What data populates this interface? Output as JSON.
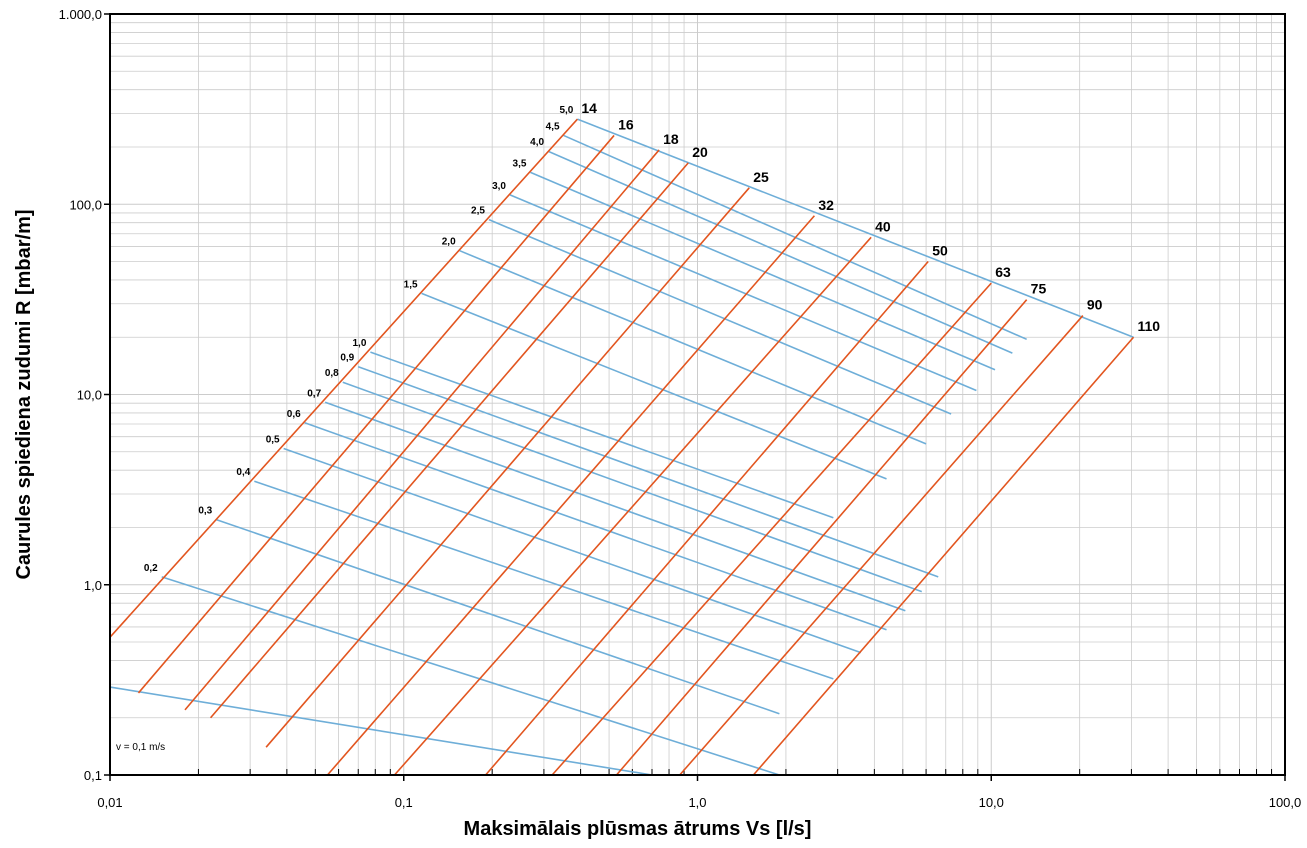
{
  "chart_data": {
    "type": "line",
    "xlabel": "Maksimālais plūsmas ātrums Vs [l/s]",
    "ylabel": "Caurules spiediena zudumi R [mbar/m]",
    "xscale": "log",
    "yscale": "log",
    "xlim": [
      0.01,
      100
    ],
    "ylim": [
      0.1,
      1000
    ],
    "grid": true,
    "x_ticks": [
      0.01,
      0.1,
      1,
      10,
      100
    ],
    "x_tick_labels": [
      "0,01",
      "0,1",
      "1,0",
      "10,0",
      "100,0"
    ],
    "y_ticks": [
      0.1,
      1,
      10,
      100,
      1000
    ],
    "y_tick_labels": [
      "0,1",
      "1,0",
      "10,0",
      "100,0",
      "1.000,0"
    ],
    "annotation": "v = 0,1 m/s",
    "colors": {
      "diameter_line": "#e2551f",
      "velocity_line": "#6eaed8",
      "grid": "#cccccc",
      "frame": "#000000"
    },
    "pipe_series": [
      {
        "name": "14",
        "start": [
          0.01,
          0.53
        ],
        "end": [
          0.39,
          280
        ]
      },
      {
        "name": "16",
        "start": [
          0.0125,
          0.27
        ],
        "end": [
          0.52,
          230
        ]
      },
      {
        "name": "18",
        "start": [
          0.018,
          0.22
        ],
        "end": [
          0.74,
          193
        ]
      },
      {
        "name": "20",
        "start": [
          0.022,
          0.2
        ],
        "end": [
          0.93,
          165
        ]
      },
      {
        "name": "25",
        "start": [
          0.034,
          0.14
        ],
        "end": [
          1.5,
          122
        ]
      },
      {
        "name": "32",
        "start": [
          0.055,
          0.1
        ],
        "end": [
          2.5,
          87
        ]
      },
      {
        "name": "40",
        "start": [
          0.093,
          0.1
        ],
        "end": [
          3.9,
          67
        ]
      },
      {
        "name": "50",
        "start": [
          0.19,
          0.1
        ],
        "end": [
          6.1,
          50
        ]
      },
      {
        "name": "63",
        "start": [
          0.32,
          0.1
        ],
        "end": [
          10,
          38.5
        ]
      },
      {
        "name": "75",
        "start": [
          0.53,
          0.1
        ],
        "end": [
          13.2,
          31.5
        ]
      },
      {
        "name": "90",
        "start": [
          0.87,
          0.1
        ],
        "end": [
          20.5,
          26
        ]
      },
      {
        "name": "110",
        "start": [
          1.55,
          0.1
        ],
        "end": [
          30.5,
          20
        ]
      }
    ],
    "velocity_series": [
      {
        "name": "0,1",
        "start": [
          0.01,
          0.29
        ],
        "end": [
          0.7,
          0.1
        ]
      },
      {
        "name": "0,2",
        "start": [
          0.015,
          1.1
        ],
        "end": [
          1.9,
          0.1
        ]
      },
      {
        "name": "0,3",
        "start": [
          0.023,
          2.2
        ],
        "end": [
          1.9,
          0.21
        ]
      },
      {
        "name": "0,4",
        "start": [
          0.031,
          3.5
        ],
        "end": [
          2.9,
          0.32
        ]
      },
      {
        "name": "0,5",
        "start": [
          0.039,
          5.2
        ],
        "end": [
          3.6,
          0.44
        ]
      },
      {
        "name": "0,6",
        "start": [
          0.046,
          7.1
        ],
        "end": [
          4.4,
          0.58
        ]
      },
      {
        "name": "0,7",
        "start": [
          0.054,
          9.1
        ],
        "end": [
          5.1,
          0.73
        ]
      },
      {
        "name": "0,8",
        "start": [
          0.062,
          11.6
        ],
        "end": [
          5.8,
          0.92
        ]
      },
      {
        "name": "0,9",
        "start": [
          0.07,
          14
        ],
        "end": [
          6.6,
          1.1
        ]
      },
      {
        "name": "1,0",
        "start": [
          0.077,
          16.7
        ],
        "end": [
          2.9,
          2.25
        ]
      },
      {
        "name": "1,5",
        "start": [
          0.115,
          34
        ],
        "end": [
          4.4,
          3.6
        ]
      },
      {
        "name": "2,0",
        "start": [
          0.155,
          57
        ],
        "end": [
          6.0,
          5.5
        ]
      },
      {
        "name": "2,5",
        "start": [
          0.195,
          83
        ],
        "end": [
          7.3,
          7.9
        ]
      },
      {
        "name": "3,0",
        "start": [
          0.23,
          112
        ],
        "end": [
          8.9,
          10.5
        ]
      },
      {
        "name": "3,5",
        "start": [
          0.27,
          147
        ],
        "end": [
          10.3,
          13.5
        ]
      },
      {
        "name": "4,0",
        "start": [
          0.31,
          190
        ],
        "end": [
          11.8,
          16.5
        ]
      },
      {
        "name": "4,5",
        "start": [
          0.35,
          230
        ],
        "end": [
          13.2,
          19.5
        ]
      },
      {
        "name": "5,0",
        "start": [
          0.39,
          280
        ],
        "end": [
          30.5,
          20
        ]
      }
    ]
  }
}
